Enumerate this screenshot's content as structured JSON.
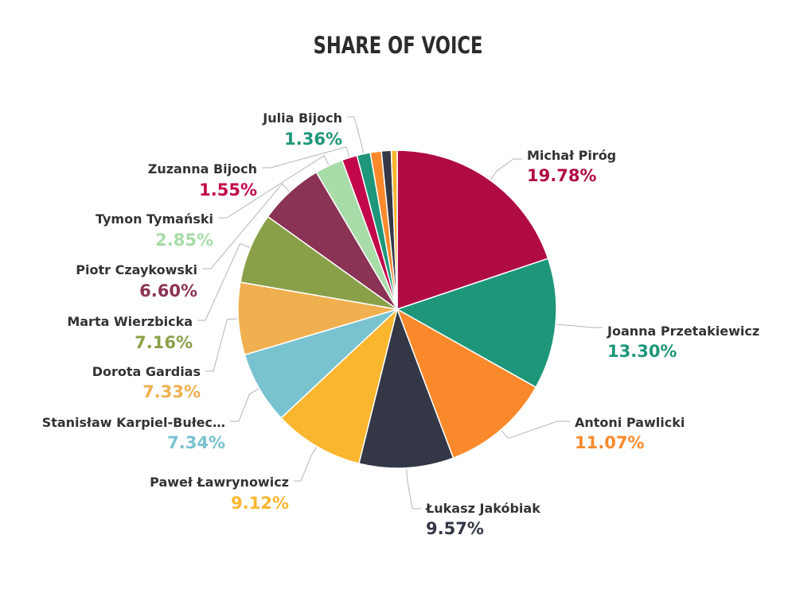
{
  "chart_data": {
    "type": "pie",
    "title": "SHARE OF VOICE",
    "slices": [
      {
        "label": "Michał Piróg",
        "value_text": "19.78%",
        "value": 19.78,
        "color": "#b00b45"
      },
      {
        "label": "Joanna Przetakiewicz",
        "value_text": "13.30%",
        "value": 13.3,
        "color": "#1e967a"
      },
      {
        "label": "Antoni Pawlicki",
        "value_text": "11.07%",
        "value": 11.07,
        "color": "#fa892c"
      },
      {
        "label": "Łukasz Jakóbiak",
        "value_text": "9.57%",
        "value": 9.57,
        "color": "#333746"
      },
      {
        "label": "Paweł Ławrynowicz",
        "value_text": "9.12%",
        "value": 9.12,
        "color": "#fbb62f"
      },
      {
        "label": "Stanisław Karpiel-Bułec…",
        "value_text": "7.34%",
        "value": 7.34,
        "color": "#79c3d0"
      },
      {
        "label": "Dorota Gardias",
        "value_text": "7.33%",
        "value": 7.33,
        "color": "#f0b04f"
      },
      {
        "label": "Marta Wierzbicka",
        "value_text": "7.16%",
        "value": 7.16,
        "color": "#8aa048"
      },
      {
        "label": "Piotr Czaykowski",
        "value_text": "6.60%",
        "value": 6.6,
        "color": "#8a3355"
      },
      {
        "label": "Tymon Tymański",
        "value_text": "2.85%",
        "value": 2.85,
        "color": "#a8dca8"
      },
      {
        "label": "Zuzanna Bijoch",
        "value_text": "1.55%",
        "value": 1.55,
        "color": "#c2084a"
      },
      {
        "label": "Julia Bijoch",
        "value_text": "1.36%",
        "value": 1.36,
        "color": "#1e967a"
      },
      {
        "label": "",
        "value_text": "",
        "value": 1.12,
        "color": "#fa892c"
      },
      {
        "label": "",
        "value_text": "",
        "value": 0.98,
        "color": "#333746"
      },
      {
        "label": "",
        "value_text": "",
        "value": 0.6,
        "color": "#fbb62f"
      }
    ]
  }
}
